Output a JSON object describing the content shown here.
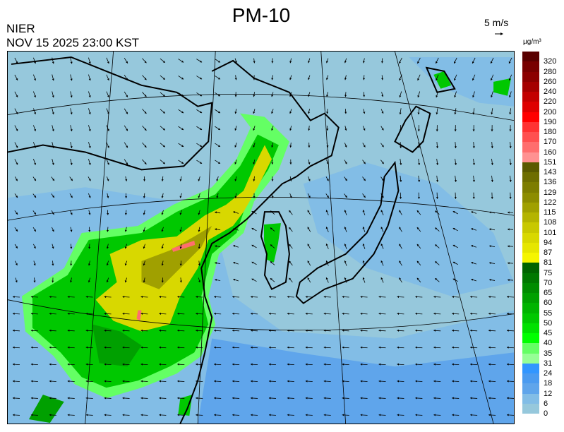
{
  "header": {
    "title": "PM-10",
    "organization": "NIER",
    "timestamp": "NOV 15 2025 23:00 KST",
    "wind_scale_label": "5 m/s",
    "unit": "µg/m³"
  },
  "legend": {
    "labels": [
      "320",
      "280",
      "260",
      "240",
      "220",
      "200",
      "190",
      "180",
      "170",
      "160",
      "151",
      "143",
      "136",
      "129",
      "122",
      "115",
      "108",
      "101",
      "94",
      "87",
      "81",
      "75",
      "70",
      "65",
      "60",
      "55",
      "50",
      "45",
      "40",
      "35",
      "31",
      "24",
      "18",
      "12",
      "6",
      "0"
    ],
    "colors": [
      "#5a0000",
      "#780000",
      "#8c0000",
      "#a50000",
      "#c30000",
      "#de0000",
      "#ff0000",
      "#ff3232",
      "#ff5050",
      "#ff6e6e",
      "#ff9191",
      "#5a5a00",
      "#6e6e00",
      "#7d7d00",
      "#8c8c00",
      "#a0a000",
      "#b4b400",
      "#c8c800",
      "#d8d800",
      "#e6e600",
      "#f5f500",
      "#006400",
      "#007800",
      "#008c00",
      "#00a000",
      "#00b400",
      "#00c800",
      "#00e100",
      "#00ff00",
      "#64ff64",
      "#96ff96",
      "#3296ff",
      "#4b9bf0",
      "#5fa5eb",
      "#82bde6",
      "#96c8dc"
    ]
  },
  "map": {
    "colors": {
      "background": "#96c8dc",
      "sea_mid": "#82bde6",
      "sea_high": "#5fa5eb",
      "green_light": "#64ff64",
      "green": "#00c800",
      "green_dark": "#00a000",
      "yellow": "#d8d800",
      "olive": "#a0a000",
      "pink": "#ff6e6e"
    }
  }
}
